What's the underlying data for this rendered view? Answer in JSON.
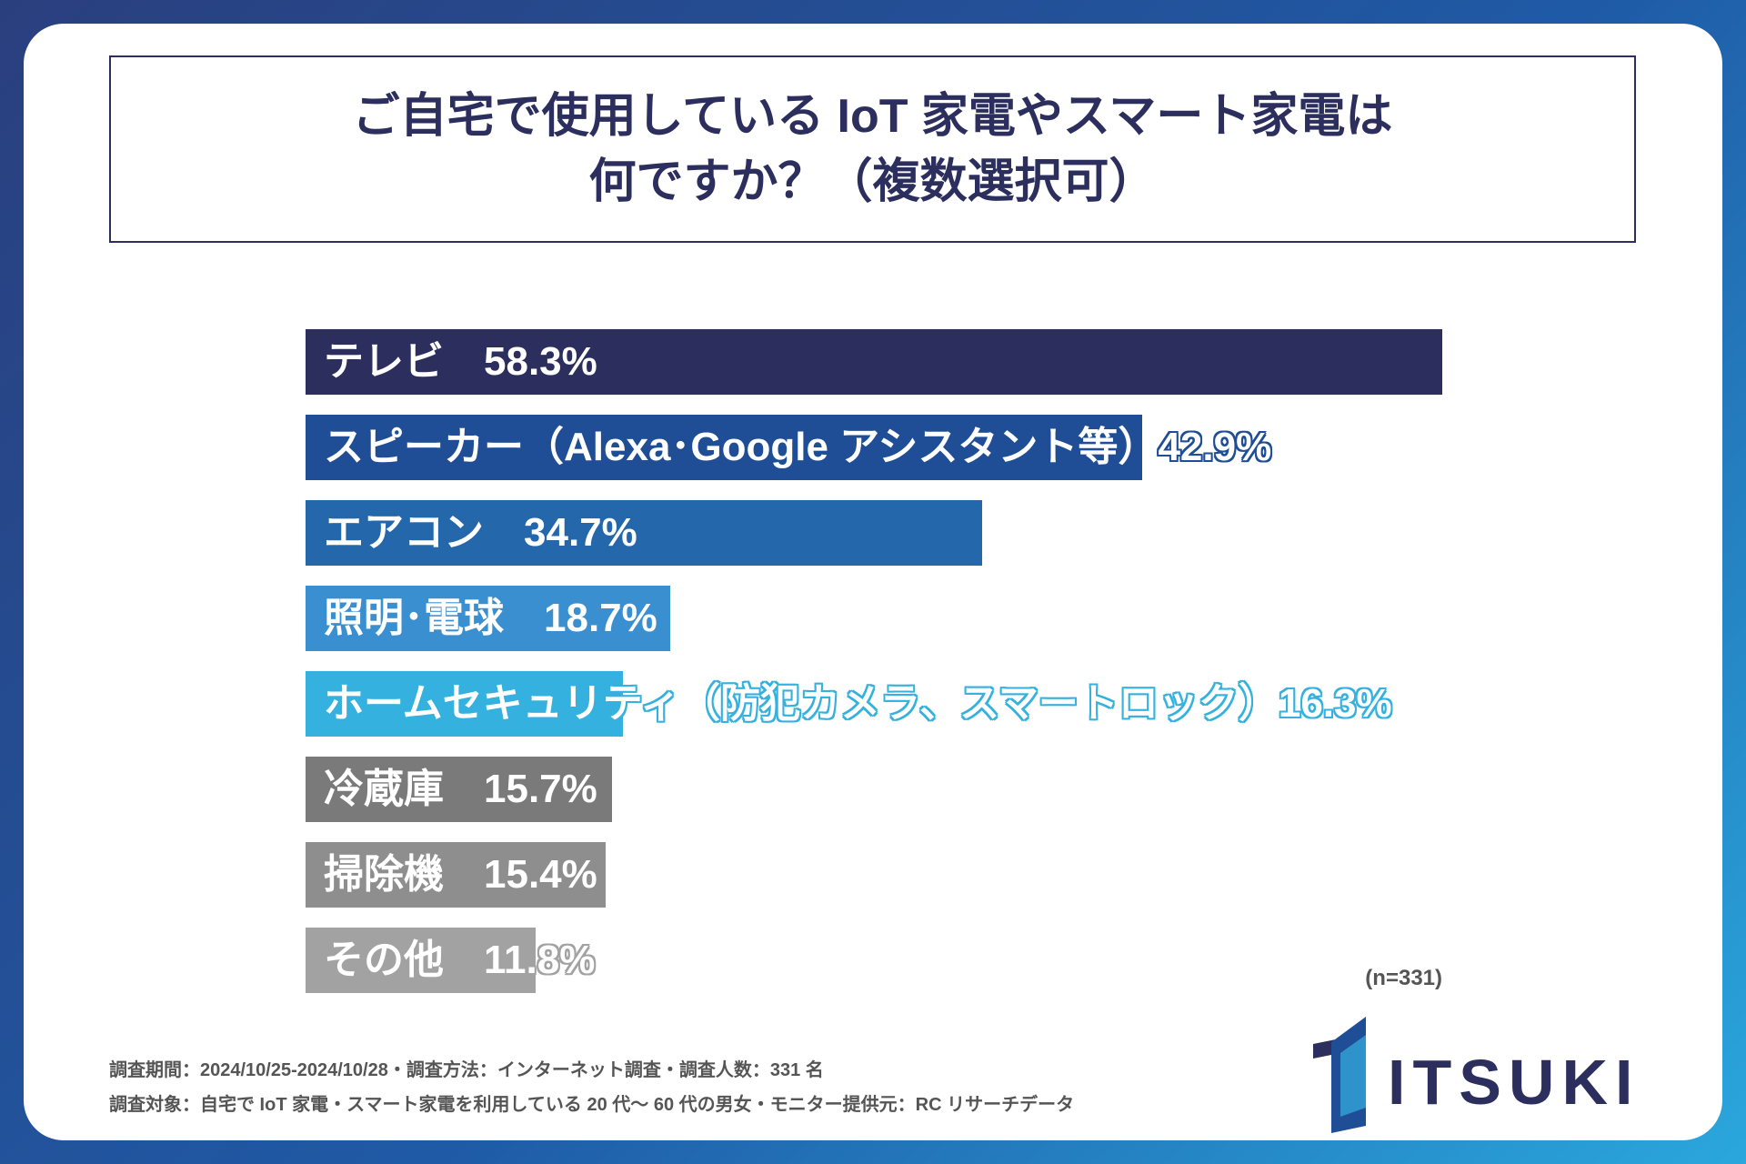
{
  "title": {
    "line1": "ご自宅で使用している IoT 家電やスマート家電は",
    "line2": "何ですか？（複数選択可）"
  },
  "chart_data": {
    "type": "bar",
    "orientation": "horizontal",
    "categories": [
      "テレビ",
      "スピーカー（Alexa･Google アシスタント等）",
      "エアコン",
      "照明･電球",
      "ホームセキュリティ（防犯カメラ、スマートロック）",
      "冷蔵庫",
      "掃除機",
      "その他"
    ],
    "values": [
      58.3,
      42.9,
      34.7,
      18.7,
      16.3,
      15.7,
      15.4,
      11.8
    ],
    "value_labels": [
      "58.3%",
      "42.9%",
      "34.7%",
      "18.7%",
      "16.3%",
      "15.7%",
      "15.4%",
      "11.8%"
    ],
    "colors": [
      "#2c2f5e",
      "#1f4e96",
      "#2467ab",
      "#3a8fd0",
      "#34b1df",
      "#7a7a7a",
      "#8e8e8e",
      "#a2a2a2"
    ],
    "xlim": [
      0,
      58.3
    ],
    "unit": "%"
  },
  "sample_size": "(n=331)",
  "footnotes": {
    "line1": "調査期間：2024/10/25-2024/10/28・調査方法：インターネット調査・調査人数：331 名",
    "line2": "調査対象：自宅で IoT 家電・スマート家電を利用している 20 代〜 60 代の男女・モニター提供元：RC リサーチデータ"
  },
  "logo": {
    "text": "ITSUKI"
  },
  "colors": {
    "dark_navy": "#2c2f5e",
    "card": "#ffffff"
  }
}
